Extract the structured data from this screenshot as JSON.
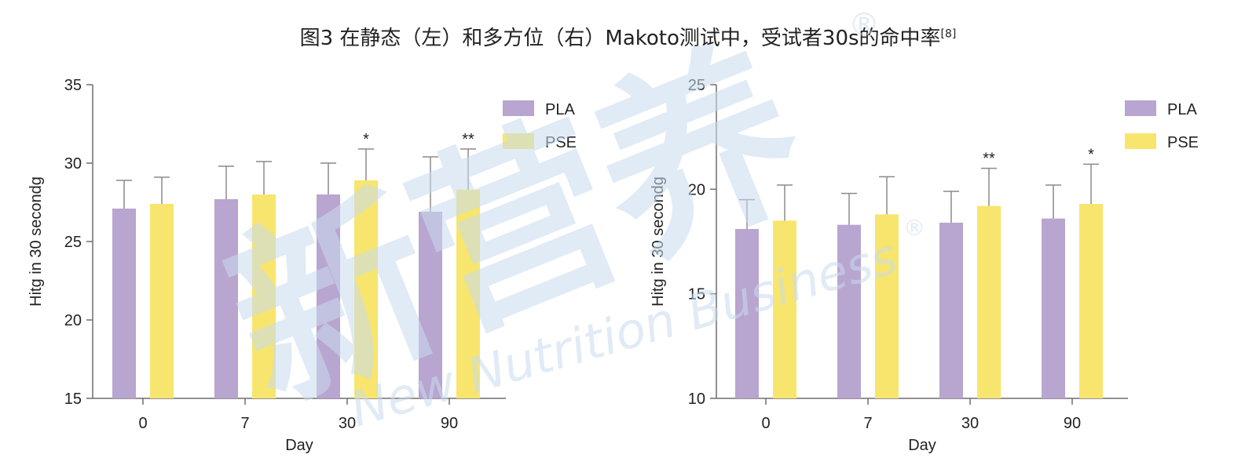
{
  "figure": {
    "title": "图3 在静态（左）和多方位（右）Makoto测试中，受试者30s的命中率",
    "title_ref": "[8]"
  },
  "watermark": {
    "text": "新营养",
    "subtext": "New Nutrition Business",
    "mark": "®",
    "color": "#c9dcef"
  },
  "chart_data": [
    {
      "type": "bar",
      "title": "",
      "xlabel": "Day",
      "ylabel": "Hitg in 30 secondg",
      "categories": [
        "0",
        "7",
        "30",
        "90"
      ],
      "ylim": [
        15,
        35
      ],
      "yticks": [
        15,
        20,
        25,
        30,
        35
      ],
      "legend_position": "top-right",
      "series": [
        {
          "name": "PLA",
          "color": "#b8a5d0",
          "values": [
            27.1,
            27.7,
            28.0,
            26.9
          ],
          "errors": [
            1.8,
            2.1,
            2.0,
            3.5
          ]
        },
        {
          "name": "PSE",
          "color": "#f7e56e",
          "values": [
            27.4,
            28.0,
            28.9,
            28.3
          ],
          "errors": [
            1.7,
            2.1,
            2.0,
            2.6
          ]
        }
      ],
      "annotations": [
        {
          "category": "30",
          "series": "PSE",
          "text": "*"
        },
        {
          "category": "90",
          "series": "PSE",
          "text": "**"
        }
      ]
    },
    {
      "type": "bar",
      "title": "",
      "xlabel": "Day",
      "ylabel": "Hitg in 30 secondg",
      "categories": [
        "0",
        "7",
        "30",
        "90"
      ],
      "ylim": [
        10,
        25
      ],
      "yticks": [
        10,
        15,
        20,
        25
      ],
      "legend_position": "top-right",
      "series": [
        {
          "name": "PLA",
          "color": "#b8a5d0",
          "values": [
            18.1,
            18.3,
            18.4,
            18.6
          ],
          "errors": [
            1.4,
            1.5,
            1.5,
            1.6
          ]
        },
        {
          "name": "PSE",
          "color": "#f7e56e",
          "values": [
            18.5,
            18.8,
            19.2,
            19.3
          ],
          "errors": [
            1.7,
            1.8,
            1.8,
            1.9
          ]
        }
      ],
      "annotations": [
        {
          "category": "30",
          "series": "PSE",
          "text": "**"
        },
        {
          "category": "90",
          "series": "PSE",
          "text": "*"
        }
      ]
    }
  ]
}
